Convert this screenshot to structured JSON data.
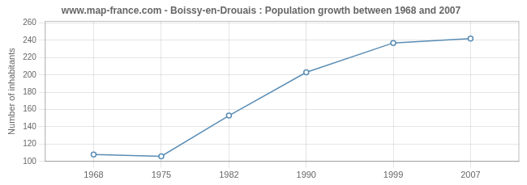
{
  "chart_data": {
    "type": "line",
    "title": "www.map-france.com - Boissy-en-Drouais : Population growth between 1968 and 2007",
    "ylabel": "Number of inhabitants",
    "x": [
      1968,
      1975,
      1982,
      1990,
      1999,
      2007
    ],
    "values": [
      108,
      106,
      153,
      203,
      237,
      242
    ],
    "color": "#5a8db5",
    "marker": "circle",
    "xlim": [
      1963,
      2012
    ],
    "xticks": [
      1968,
      1975,
      1982,
      1990,
      1999,
      2007
    ],
    "ylim": [
      100,
      262
    ],
    "yticks": [
      100,
      120,
      140,
      160,
      180,
      200,
      220,
      240,
      260
    ],
    "grid": true
  }
}
